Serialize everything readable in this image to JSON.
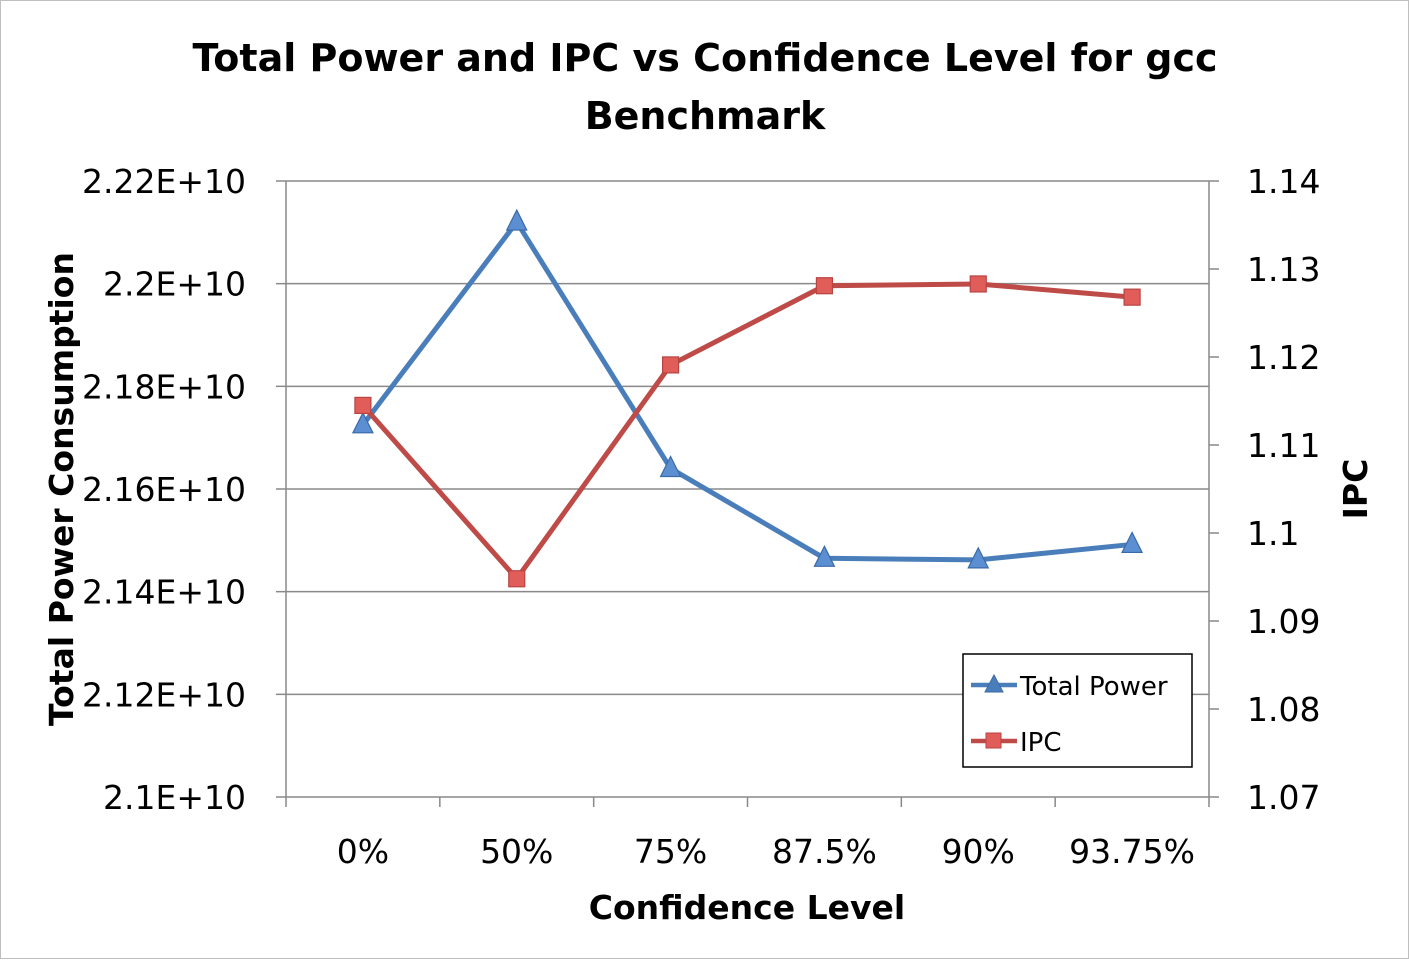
{
  "chart_data": {
    "type": "line",
    "title": "Total Power and IPC vs Confidence Level for gcc Benchmark",
    "title_lines": [
      "Total Power and IPC vs Confidence Level for gcc",
      "Benchmark"
    ],
    "xlabel": "Confidence Level",
    "ylabel": "Total Power Consumption",
    "y2label": "IPC",
    "categories": [
      "0%",
      "50%",
      "75%",
      "87.5%",
      "90%",
      "93.75%"
    ],
    "y_axis": {
      "min": 21000000000,
      "max": 22200000000,
      "ticks": [
        21000000000,
        21200000000,
        21400000000,
        21600000000,
        21800000000,
        22000000000,
        22200000000
      ],
      "tick_labels": [
        "2.1E+10",
        "2.12E+10",
        "2.14E+10",
        "2.16E+10",
        "2.18E+10",
        "2.2E+10",
        "2.22E+10"
      ]
    },
    "y2_axis": {
      "min": 1.07,
      "max": 1.14,
      "ticks": [
        1.07,
        1.08,
        1.09,
        1.1,
        1.11,
        1.12,
        1.13,
        1.14
      ],
      "tick_labels": [
        "1.07",
        "1.08",
        "1.09",
        "1.1",
        "1.11",
        "1.12",
        "1.13",
        "1.14"
      ]
    },
    "grid": true,
    "legend_position": "bottom-right",
    "series": [
      {
        "name": "Total Power",
        "axis": "left",
        "marker": "triangle",
        "color": "#4a7ebb",
        "values": [
          21725000000,
          22120000000,
          21640000000,
          21465000000,
          21462000000,
          21492000000
        ]
      },
      {
        "name": "IPC",
        "axis": "right",
        "marker": "square",
        "color": "#be4b48",
        "values": [
          1.1145,
          1.0948,
          1.1191,
          1.1281,
          1.1283,
          1.1268
        ]
      }
    ]
  }
}
